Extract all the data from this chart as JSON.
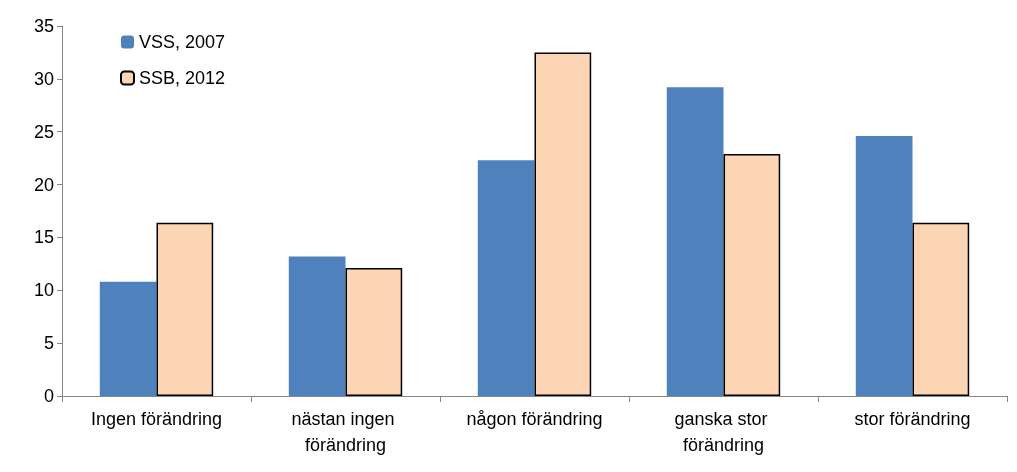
{
  "chart_data": {
    "type": "bar",
    "categories": [
      "Ingen förändring",
      "nästan ingen förändring",
      "någon förändring",
      "ganska stor förändring",
      "stor förändring"
    ],
    "series": [
      {
        "name": "VSS, 2007",
        "color": "#4f81bd",
        "values": [
          10.8,
          13.2,
          22.3,
          29.2,
          24.6
        ]
      },
      {
        "name": "SSB, 2012",
        "color": "#fcd5b5",
        "values": [
          16.4,
          12.1,
          32.5,
          22.9,
          16.4
        ]
      }
    ],
    "ylim": [
      0,
      35
    ],
    "yticks": [
      0,
      5,
      10,
      15,
      20,
      25,
      30,
      35
    ],
    "grid": false,
    "legend": "top left"
  }
}
